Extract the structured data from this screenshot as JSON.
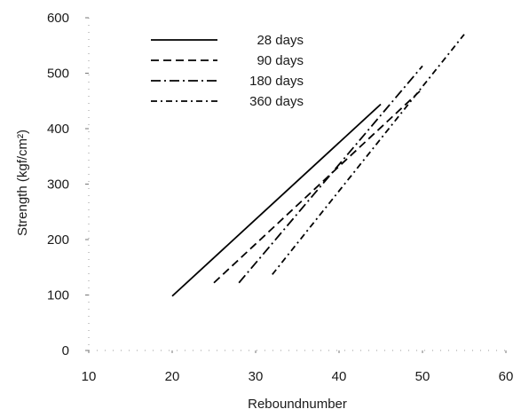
{
  "chart_data": {
    "type": "line",
    "title": "",
    "xlabel": "Reboundnumber",
    "ylabel": "Strength (kgf/cm²)",
    "xlim": [
      10,
      60
    ],
    "ylim": [
      0,
      600
    ],
    "xticks": [
      10,
      20,
      30,
      40,
      50,
      60
    ],
    "yticks": [
      0,
      100,
      200,
      300,
      400,
      500,
      600
    ],
    "grid": false,
    "legend_position": "top-left",
    "series": [
      {
        "name": "28 days",
        "style": "solid",
        "x": [
          20,
          45
        ],
        "y": [
          98,
          444
        ]
      },
      {
        "name": "90 days",
        "style": "dashed",
        "x": [
          25,
          50
        ],
        "y": [
          122,
          472
        ]
      },
      {
        "name": "180 days",
        "style": "dashdot",
        "x": [
          28,
          50
        ],
        "y": [
          122,
          513
        ]
      },
      {
        "name": "360 days",
        "style": "dashdot2",
        "x": [
          32,
          55
        ],
        "y": [
          137,
          570
        ]
      }
    ]
  }
}
